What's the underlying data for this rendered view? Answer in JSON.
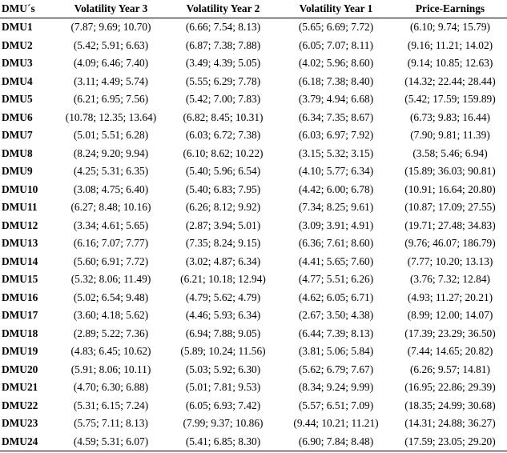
{
  "headers": [
    "DMU´s",
    "Volatility Year 3",
    "Volatility Year 2",
    "Volatility Year 1",
    "Price-Earnings"
  ],
  "rows": [
    [
      "DMU1",
      "(7.87; 9.69; 10.70)",
      "(6.66; 7.54; 8.13)",
      "(5.65; 6.69; 7.72)",
      "(6.10; 9.74; 15.79)"
    ],
    [
      "DMU2",
      "(5.42; 5.91; 6.63)",
      "(6.87; 7.38; 7.88)",
      "(6.05; 7.07; 8.11)",
      "(9.16; 11.21; 14.02)"
    ],
    [
      "DMU3",
      "(4.09; 6.46; 7.40)",
      "(3.49; 4.39; 5.05)",
      "(4.02; 5.96; 8.60)",
      "(9.14; 10.85; 12.63)"
    ],
    [
      "DMU4",
      "(3.11; 4.49; 5.74)",
      "(5.55; 6.29; 7.78)",
      "(6.18; 7.38; 8.40)",
      "(14.32; 22.44; 28.44)"
    ],
    [
      "DMU5",
      "(6.21; 6.95; 7.56)",
      "(5.42; 7.00; 7.83)",
      "(3.79; 4.94; 6.68)",
      "(5.42; 17.59; 159.89)"
    ],
    [
      "DMU6",
      "(10.78; 12.35; 13.64)",
      "(6.82; 8.45; 10.31)",
      "(6.34; 7.35; 8.67)",
      "(6.73; 9.83; 16.44)"
    ],
    [
      "DMU7",
      "(5.01; 5.51; 6.28)",
      "(6.03; 6.72; 7.38)",
      "(6.03; 6.97; 7.92)",
      "(7.90; 9.81; 11.39)"
    ],
    [
      "DMU8",
      "(8.24; 9.20; 9.94)",
      "(6.10; 8.62; 10.22)",
      "(3.15; 5.32; 3.15)",
      "(3.58; 5.46; 6.94)"
    ],
    [
      "DMU9",
      "(4.25; 5.31; 6.35)",
      "(5.40; 5.96; 6.54)",
      "(4.10; 5.77; 6.34)",
      "(15.89; 36.03; 90.81)"
    ],
    [
      "DMU10",
      "(3.08; 4.75; 6.40)",
      "(5.40; 6.83; 7.95)",
      "(4.42; 6.00; 6.78)",
      "(10.91; 16.64; 20.80)"
    ],
    [
      "DMU11",
      "(6.27; 8.48; 10.16)",
      "(6.26; 8.12; 9.92)",
      "(7.34; 8.25; 9.61)",
      "(10.87; 17.09; 27.55)"
    ],
    [
      "DMU12",
      "(3.34; 4.61; 5.65)",
      "(2.87; 3.94; 5.01)",
      "(3.09; 3.91; 4.91)",
      "(19.71; 27.48; 34.83)"
    ],
    [
      "DMU13",
      "(6.16; 7.07; 7.77)",
      "(7.35; 8.24; 9.15)",
      "(6.36; 7.61; 8.60)",
      "(9.76; 46.07; 186.79)"
    ],
    [
      "DMU14",
      "(5.60; 6.91; 7.72)",
      "(3.02; 4.87; 6.34)",
      "(4.41; 5.65; 7.60)",
      "(7.77; 10.20; 13.13)"
    ],
    [
      "DMU15",
      "(5.32; 8.06; 11.49)",
      "(6.21; 10.18; 12.94)",
      "(4.77; 5.51; 6.26)",
      "(3.76; 7.32; 12.84)"
    ],
    [
      "DMU16",
      "(5.02; 6.54; 9.48)",
      "(4.79; 5.62; 4.79)",
      "(4.62; 6.05; 6.71)",
      "(4.93; 11.27; 20.21)"
    ],
    [
      "DMU17",
      "(3.60; 4.18; 5.62)",
      "(4.46; 5.93; 6.34)",
      "(2.67; 3.50; 4.38)",
      "(8.99; 12.00; 14.07)"
    ],
    [
      "DMU18",
      "(2.89; 5.22; 7.36)",
      "(6.94; 7.88; 9.05)",
      "(6.44; 7.39; 8.13)",
      "(17.39; 23.29; 36.50)"
    ],
    [
      "DMU19",
      "(4.83; 6.45; 10.62)",
      "(5.89; 10.24; 11.56)",
      "(3.81; 5.06; 5.84)",
      "(7.44; 14.65; 20.82)"
    ],
    [
      "DMU20",
      "(5.91; 8.06; 10.11)",
      "(5.03; 5.92; 6.30)",
      "(5.62; 6.79; 7.67)",
      "(6.26; 9.57; 14.81)"
    ],
    [
      "DMU21",
      "(4.70; 6.30; 6.88)",
      "(5.01; 7.81; 9.53)",
      "(8.34; 9.24; 9.99)",
      "(16.95; 22.86; 29.39)"
    ],
    [
      "DMU22",
      "(5.31; 6.15; 7.24)",
      "(6.05; 6.93; 7.42)",
      "(5.57; 6.51; 7.09)",
      "(18.35; 24.99; 30.68)"
    ],
    [
      "DMU23",
      "(5.75; 7.11; 8.13)",
      "(7.99; 9.37; 10.86)",
      "(9.44; 10.21; 11.21)",
      "(14.31; 24.88; 36.27)"
    ],
    [
      "DMU24",
      "(4.59; 5.31; 6.07)",
      "(5.41; 6.85; 8.30)",
      "(6.90; 7.84; 8.48)",
      "(17.59; 23.05; 29.20)"
    ]
  ]
}
